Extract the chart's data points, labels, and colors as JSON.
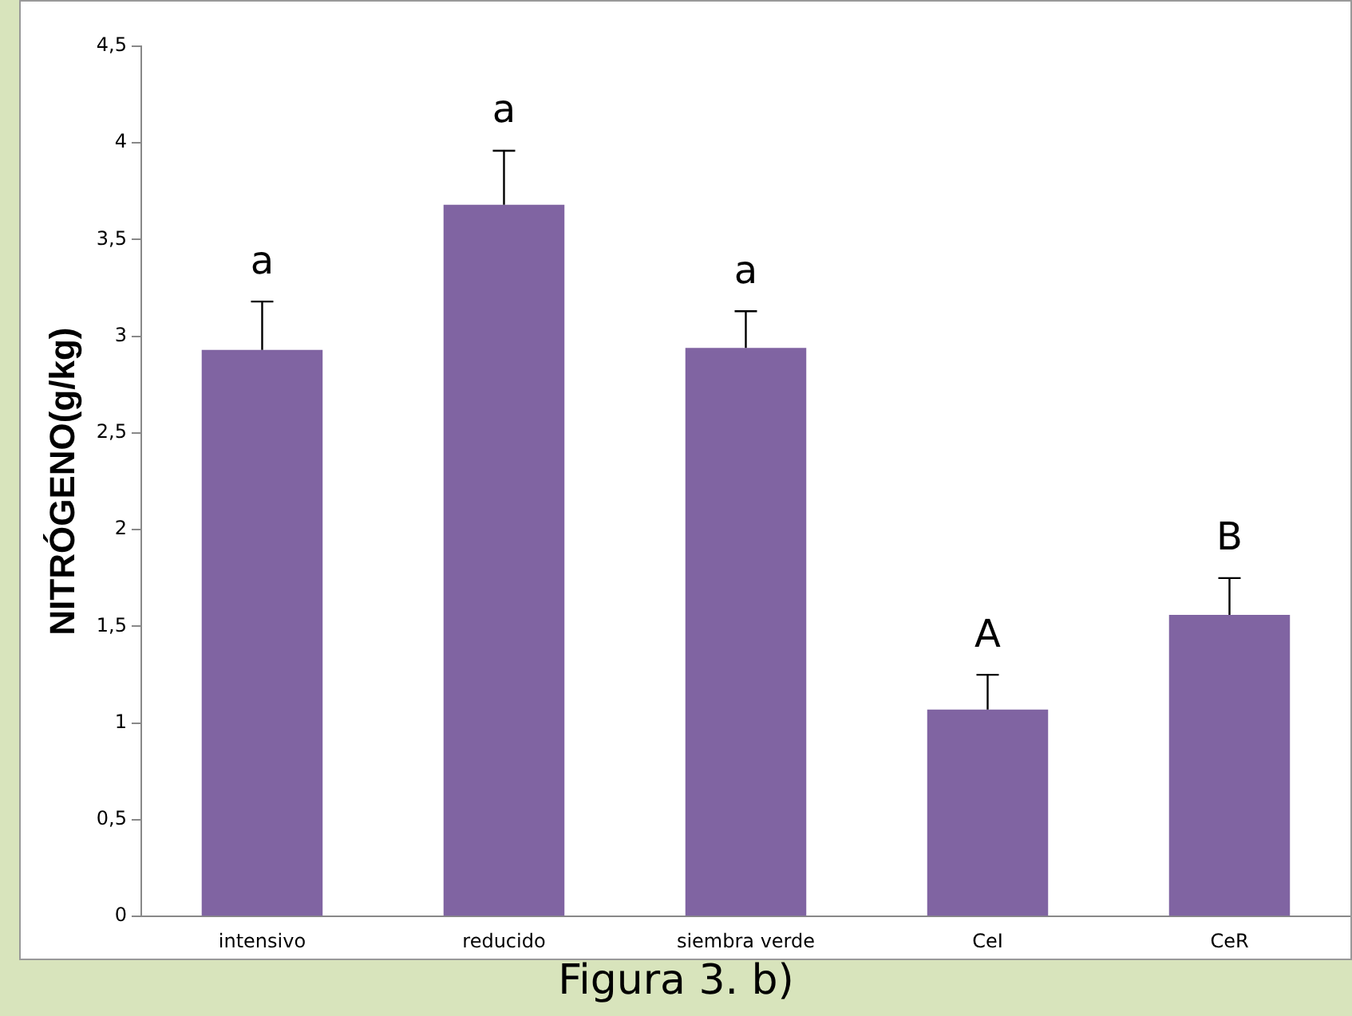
{
  "chart_data": {
    "type": "bar",
    "ylabel": "NITRÓGENO(g/kg)",
    "categories": [
      "intensivo",
      "reducido",
      "siembra verde",
      "CeI",
      "CeR"
    ],
    "values": [
      2.93,
      3.68,
      2.94,
      1.07,
      1.56
    ],
    "errors": [
      [
        2.93,
        3.18
      ],
      [
        3.68,
        3.96
      ],
      [
        2.94,
        3.13
      ],
      [
        1.07,
        1.25
      ],
      [
        1.56,
        1.75
      ]
    ],
    "color": "#8064a2",
    "ylim": [
      0,
      4.5
    ],
    "yticks": [
      0,
      {
        "value": 0.5,
        "label": "0,5"
      },
      1,
      {
        "value": 1.5,
        "label": "1,5"
      },
      2,
      {
        "value": 2.5,
        "label": "2,5"
      },
      3,
      {
        "value": 3.5,
        "label": "3,5"
      },
      4,
      {
        "value": 4.5,
        "label": "4,5"
      }
    ],
    "grid": false,
    "legend": false,
    "annotations": [
      {
        "text": "a",
        "x": "intensivo",
        "y": 2.93
      },
      {
        "text": "a",
        "x": "reducido",
        "y": 3.68
      },
      {
        "text": "a",
        "x": "siembra verde",
        "y": 2.94
      },
      {
        "text": "A",
        "x": "CeI",
        "y": 1.07
      },
      {
        "text": "B",
        "x": "CeR",
        "y": 1.56
      },
      "Figura 3. b)"
    ]
  }
}
